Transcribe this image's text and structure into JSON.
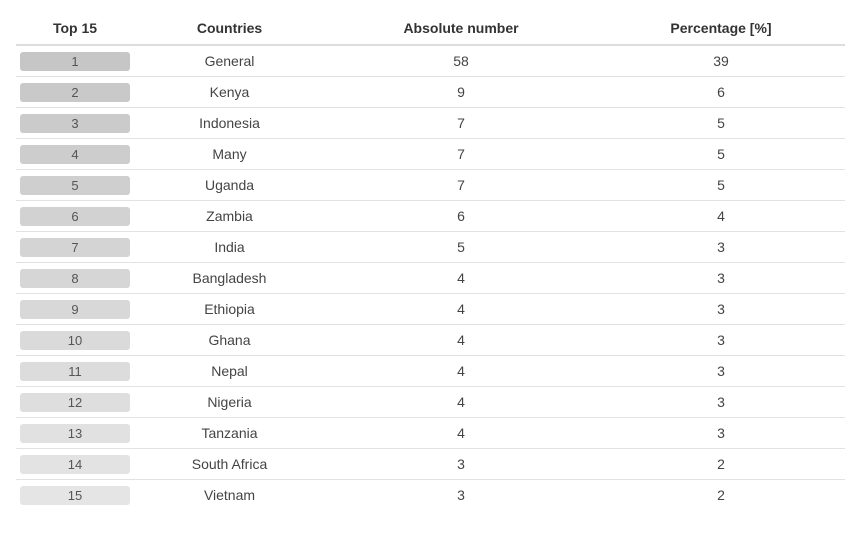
{
  "table": {
    "headers": {
      "rank": "Top 15",
      "country": "Countries",
      "absolute": "Absolute number",
      "percentage": "Percentage [%]"
    },
    "rows": [
      {
        "rank": "1",
        "country": "General",
        "absolute": "58",
        "percentage": "39",
        "pill_color": "#c6c6c6"
      },
      {
        "rank": "2",
        "country": "Kenya",
        "absolute": "9",
        "percentage": "6",
        "pill_color": "#c9c9c9"
      },
      {
        "rank": "3",
        "country": "Indonesia",
        "absolute": "7",
        "percentage": "5",
        "pill_color": "#cbcbcb"
      },
      {
        "rank": "4",
        "country": "Many",
        "absolute": "7",
        "percentage": "5",
        "pill_color": "#cdcdcd"
      },
      {
        "rank": "5",
        "country": "Uganda",
        "absolute": "7",
        "percentage": "5",
        "pill_color": "#cfcfcf"
      },
      {
        "rank": "6",
        "country": "Zambia",
        "absolute": "6",
        "percentage": "4",
        "pill_color": "#d2d2d2"
      },
      {
        "rank": "7",
        "country": "India",
        "absolute": "5",
        "percentage": "3",
        "pill_color": "#d4d4d4"
      },
      {
        "rank": "8",
        "country": "Bangladesh",
        "absolute": "4",
        "percentage": "3",
        "pill_color": "#d6d6d6"
      },
      {
        "rank": "9",
        "country": "Ethiopia",
        "absolute": "4",
        "percentage": "3",
        "pill_color": "#d8d8d8"
      },
      {
        "rank": "10",
        "country": "Ghana",
        "absolute": "4",
        "percentage": "3",
        "pill_color": "#dadada"
      },
      {
        "rank": "11",
        "country": "Nepal",
        "absolute": "4",
        "percentage": "3",
        "pill_color": "#dcdcdc"
      },
      {
        "rank": "12",
        "country": "Nigeria",
        "absolute": "4",
        "percentage": "3",
        "pill_color": "#dedede"
      },
      {
        "rank": "13",
        "country": "Tanzania",
        "absolute": "4",
        "percentage": "3",
        "pill_color": "#e1e1e1"
      },
      {
        "rank": "14",
        "country": "South Africa",
        "absolute": "3",
        "percentage": "2",
        "pill_color": "#e3e3e3"
      },
      {
        "rank": "15",
        "country": "Vietnam",
        "absolute": "3",
        "percentage": "2",
        "pill_color": "#e5e5e5"
      }
    ]
  },
  "chart_data": {
    "type": "table",
    "columns": [
      "Top 15",
      "Countries",
      "Absolute number",
      "Percentage [%]"
    ],
    "rows": [
      [
        1,
        "General",
        58,
        39
      ],
      [
        2,
        "Kenya",
        9,
        6
      ],
      [
        3,
        "Indonesia",
        7,
        5
      ],
      [
        4,
        "Many",
        7,
        5
      ],
      [
        5,
        "Uganda",
        7,
        5
      ],
      [
        6,
        "Zambia",
        6,
        4
      ],
      [
        7,
        "India",
        5,
        3
      ],
      [
        8,
        "Bangladesh",
        4,
        3
      ],
      [
        9,
        "Ethiopia",
        4,
        3
      ],
      [
        10,
        "Ghana",
        4,
        3
      ],
      [
        11,
        "Nepal",
        4,
        3
      ],
      [
        12,
        "Nigeria",
        4,
        3
      ],
      [
        13,
        "Tanzania",
        4,
        3
      ],
      [
        14,
        "South Africa",
        3,
        2
      ],
      [
        15,
        "Vietnam",
        3,
        2
      ]
    ]
  }
}
